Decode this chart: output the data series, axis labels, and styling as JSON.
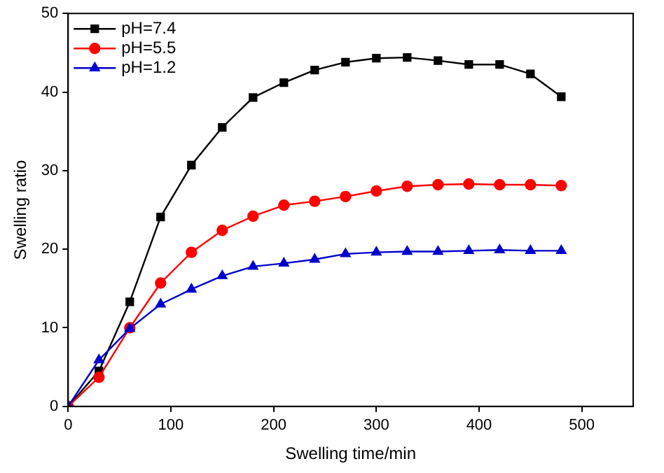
{
  "chart_data": {
    "type": "line",
    "xlabel": "Swelling time/min",
    "ylabel": "Swelling ratio",
    "x": [
      0,
      30,
      60,
      90,
      120,
      150,
      180,
      210,
      240,
      270,
      300,
      330,
      360,
      390,
      420,
      450,
      480
    ],
    "series": [
      {
        "name": "pH=7.4",
        "color": "#000000",
        "marker": "square",
        "values": [
          0,
          4.5,
          13.3,
          24.1,
          30.7,
          35.5,
          39.3,
          41.2,
          42.8,
          43.8,
          44.3,
          44.4,
          44.0,
          43.5,
          43.5,
          42.3,
          39.4
        ]
      },
      {
        "name": "pH=5.5",
        "color": "#ff0000",
        "marker": "circle",
        "values": [
          0,
          3.7,
          10.0,
          15.7,
          19.6,
          22.4,
          24.2,
          25.6,
          26.1,
          26.7,
          27.4,
          28.0,
          28.2,
          28.3,
          28.2,
          28.2,
          28.1
        ]
      },
      {
        "name": "pH=1.2",
        "color": "#0000cc",
        "marker": "triangle",
        "values": [
          0,
          5.9,
          9.9,
          13.0,
          14.9,
          16.6,
          17.8,
          18.2,
          18.7,
          19.4,
          19.6,
          19.7,
          19.7,
          19.8,
          19.9,
          19.8,
          19.8
        ]
      }
    ],
    "xlim": [
      0,
      550
    ],
    "xticks": [
      0,
      100,
      200,
      300,
      400,
      500
    ],
    "ylim": [
      0,
      50
    ],
    "yticks": [
      0,
      10,
      20,
      30,
      40,
      50
    ],
    "grid": false,
    "legend": "top left"
  }
}
